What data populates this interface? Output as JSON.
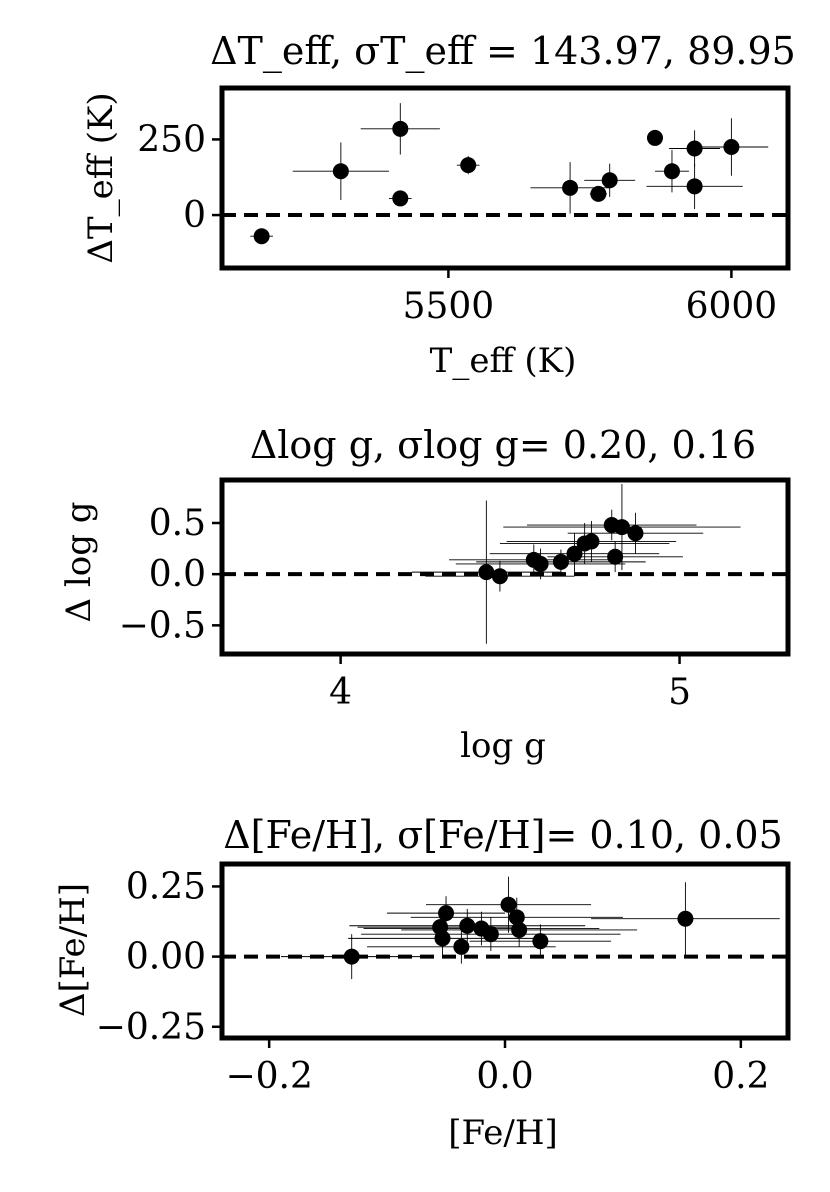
{
  "chart_data": [
    {
      "type": "scatter",
      "title": "ΔT_eff, σT_eff = 143.97, 89.95",
      "xlabel": "T_eff (K)",
      "ylabel": "ΔT_eff (K)",
      "xlim": [
        5100,
        6100
      ],
      "ylim": [
        -175,
        420
      ],
      "xticks": [
        5500,
        6000
      ],
      "yticks": [
        0,
        250
      ],
      "tick_labels_x": [
        "5500",
        "6000"
      ],
      "tick_labels_y": [
        "0",
        "250"
      ],
      "reference_line": 0,
      "points": [
        {
          "x": 5170,
          "y": -70,
          "xerr": 20,
          "yerr": 5
        },
        {
          "x": 5310,
          "y": 145,
          "xerr": 85,
          "yerr": 95
        },
        {
          "x": 5415,
          "y": 285,
          "xerr": 70,
          "yerr": 85
        },
        {
          "x": 5415,
          "y": 55,
          "xerr": 20,
          "yerr": 15
        },
        {
          "x": 5535,
          "y": 165,
          "xerr": 20,
          "yerr": 30
        },
        {
          "x": 5715,
          "y": 90,
          "xerr": 70,
          "yerr": 85
        },
        {
          "x": 5765,
          "y": 70,
          "xerr": 15,
          "yerr": 15
        },
        {
          "x": 5785,
          "y": 115,
          "xerr": 45,
          "yerr": 55
        },
        {
          "x": 5865,
          "y": 255,
          "xerr": 10,
          "yerr": 10
        },
        {
          "x": 5895,
          "y": 145,
          "xerr": 30,
          "yerr": 70
        },
        {
          "x": 5935,
          "y": 220,
          "xerr": 45,
          "yerr": 60
        },
        {
          "x": 5935,
          "y": 95,
          "xerr": 85,
          "yerr": 75
        },
        {
          "x": 6000,
          "y": 225,
          "xerr": 65,
          "yerr": 95
        }
      ]
    },
    {
      "type": "scatter",
      "title": "Δlog g, σlog g= 0.20, 0.16",
      "xlabel": "log g",
      "ylabel": "Δ log g",
      "xlim": [
        3.65,
        5.32
      ],
      "ylim": [
        -0.78,
        0.92
      ],
      "xticks": [
        4,
        5
      ],
      "yticks": [
        -0.5,
        0.0,
        0.5
      ],
      "tick_labels_x": [
        "4",
        "5"
      ],
      "tick_labels_y": [
        "−0.5",
        "0.0",
        "0.5"
      ],
      "reference_line": 0,
      "points": [
        {
          "x": 4.43,
          "y": 0.02,
          "xerr": 0.22,
          "yerr": 0.7
        },
        {
          "x": 4.47,
          "y": -0.02,
          "xerr": 0.22,
          "yerr": 0.15
        },
        {
          "x": 4.57,
          "y": 0.14,
          "xerr": 0.25,
          "yerr": 0.15
        },
        {
          "x": 4.59,
          "y": 0.1,
          "xerr": 0.25,
          "yerr": 0.15
        },
        {
          "x": 4.65,
          "y": 0.12,
          "xerr": 0.25,
          "yerr": 0.12
        },
        {
          "x": 4.69,
          "y": 0.2,
          "xerr": 0.25,
          "yerr": 0.2
        },
        {
          "x": 4.72,
          "y": 0.3,
          "xerr": 0.25,
          "yerr": 0.2
        },
        {
          "x": 4.74,
          "y": 0.32,
          "xerr": 0.25,
          "yerr": 0.2
        },
        {
          "x": 4.8,
          "y": 0.48,
          "xerr": 0.25,
          "yerr": 0.15
        },
        {
          "x": 4.81,
          "y": 0.17,
          "xerr": 0.2,
          "yerr": 0.15
        },
        {
          "x": 4.83,
          "y": 0.46,
          "xerr": 0.35,
          "yerr": 0.42
        },
        {
          "x": 4.87,
          "y": 0.4,
          "xerr": 0.2,
          "yerr": 0.2
        }
      ]
    },
    {
      "type": "scatter",
      "title": "Δ[Fe/H], σ[Fe/H]= 0.10, 0.05",
      "xlabel": "[Fe/H]",
      "ylabel": "Δ[Fe/H]",
      "xlim": [
        -0.24,
        0.24
      ],
      "ylim": [
        -0.29,
        0.33
      ],
      "xticks": [
        -0.2,
        0.0,
        0.2
      ],
      "yticks": [
        -0.25,
        0.0,
        0.25
      ],
      "tick_labels_x": [
        "−0.2",
        "0.0",
        "0.2"
      ],
      "tick_labels_y": [
        "−0.25",
        "0.00",
        "0.25"
      ],
      "reference_line": 0,
      "points": [
        {
          "x": -0.13,
          "y": 0.0,
          "xerr": 0.06,
          "yerr": 0.08
        },
        {
          "x": -0.055,
          "y": 0.105,
          "xerr": 0.07,
          "yerr": 0.06
        },
        {
          "x": -0.053,
          "y": 0.065,
          "xerr": 0.08,
          "yerr": 0.06
        },
        {
          "x": -0.05,
          "y": 0.155,
          "xerr": 0.05,
          "yerr": 0.06
        },
        {
          "x": -0.037,
          "y": 0.035,
          "xerr": 0.08,
          "yerr": 0.06
        },
        {
          "x": -0.032,
          "y": 0.11,
          "xerr": 0.1,
          "yerr": 0.06
        },
        {
          "x": -0.02,
          "y": 0.1,
          "xerr": 0.1,
          "yerr": 0.06
        },
        {
          "x": -0.012,
          "y": 0.08,
          "xerr": 0.11,
          "yerr": 0.06
        },
        {
          "x": 0.003,
          "y": 0.185,
          "xerr": 0.07,
          "yerr": 0.1
        },
        {
          "x": 0.01,
          "y": 0.14,
          "xerr": 0.09,
          "yerr": 0.07
        },
        {
          "x": 0.012,
          "y": 0.095,
          "xerr": 0.1,
          "yerr": 0.06
        },
        {
          "x": 0.03,
          "y": 0.055,
          "xerr": 0.06,
          "yerr": 0.06
        },
        {
          "x": 0.153,
          "y": 0.135,
          "xerr": 0.08,
          "yerr": 0.13
        }
      ]
    }
  ]
}
